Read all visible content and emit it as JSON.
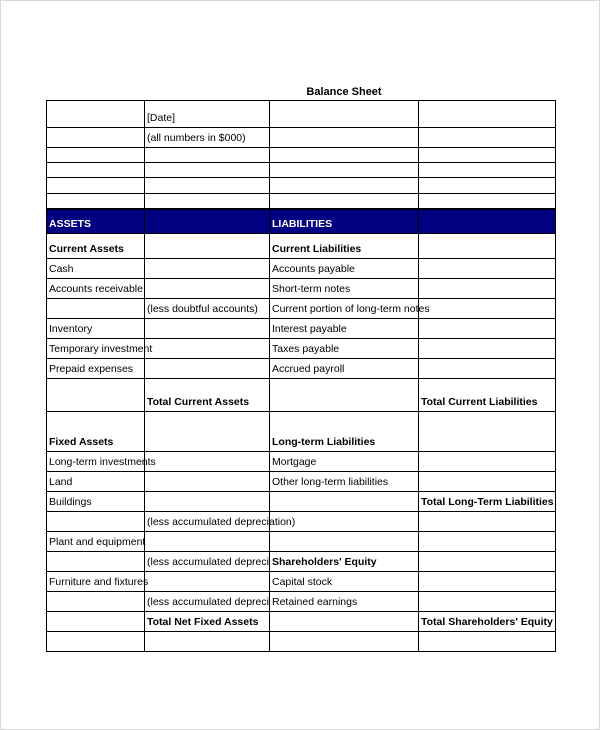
{
  "title": "Balance Sheet",
  "header_color": "#000080",
  "rows": [
    {
      "h": 27,
      "cells": [
        "",
        "[Date]",
        "",
        ""
      ]
    },
    {
      "h": 20,
      "cells": [
        "",
        "(all numbers in $000)",
        "",
        ""
      ]
    },
    {
      "h": 15,
      "cells": [
        "",
        "",
        "",
        ""
      ]
    },
    {
      "h": 15,
      "cells": [
        "",
        "",
        "",
        ""
      ]
    },
    {
      "h": 16,
      "cells": [
        "",
        "",
        "",
        ""
      ]
    },
    {
      "h": 15,
      "cells": [
        "",
        "",
        "",
        ""
      ]
    },
    {
      "h": 25,
      "header": true,
      "cells": [
        "ASSETS",
        "",
        "LIABILITIES",
        ""
      ]
    },
    {
      "h": 25,
      "bold": [
        0,
        2
      ],
      "cells": [
        "Current Assets",
        "",
        "Current Liabilities",
        ""
      ]
    },
    {
      "h": 20,
      "cells": [
        "Cash",
        "",
        "Accounts payable",
        ""
      ]
    },
    {
      "h": 20,
      "cells": [
        "Accounts receivable",
        "",
        "Short-term notes",
        ""
      ]
    },
    {
      "h": 20,
      "cells": [
        "",
        "(less doubtful accounts)",
        "Current portion of long-term notes",
        ""
      ]
    },
    {
      "h": 20,
      "cells": [
        "Inventory",
        "",
        "Interest payable",
        ""
      ]
    },
    {
      "h": 20,
      "cells": [
        "Temporary investment",
        "",
        "Taxes payable",
        ""
      ]
    },
    {
      "h": 20,
      "cells": [
        "Prepaid expenses",
        "",
        "Accrued payroll",
        ""
      ]
    },
    {
      "h": 33,
      "bold": [
        1,
        3
      ],
      "cells": [
        "",
        "Total Current Assets",
        "",
        "Total Current Liabilities"
      ]
    },
    {
      "h": 40,
      "bold": [
        0,
        2
      ],
      "cells": [
        "Fixed Assets",
        "",
        "Long-term Liabilities",
        ""
      ]
    },
    {
      "h": 20,
      "cells": [
        "Long-term investments",
        "",
        "Mortgage",
        ""
      ]
    },
    {
      "h": 20,
      "cells": [
        "Land",
        "",
        "Other long-term liabilities",
        ""
      ]
    },
    {
      "h": 20,
      "bold": [
        3
      ],
      "cells": [
        "Buildings",
        "",
        "",
        "Total Long-Term Liabilities"
      ]
    },
    {
      "h": 20,
      "cells": [
        "",
        "(less accumulated depreciation)",
        "",
        ""
      ]
    },
    {
      "h": 20,
      "cells": [
        "Plant and equipment",
        "",
        "",
        ""
      ]
    },
    {
      "h": 20,
      "bold": [
        2
      ],
      "cells": [
        "",
        "(less accumulated depreciation)",
        "Shareholders' Equity",
        ""
      ]
    },
    {
      "h": 20,
      "cells": [
        "Furniture and fixtures",
        "",
        "Capital stock",
        ""
      ]
    },
    {
      "h": 20,
      "cells": [
        "",
        "(less accumulated depreciation)",
        "Retained earnings",
        ""
      ]
    },
    {
      "h": 20,
      "bold": [
        1,
        3
      ],
      "cells": [
        "",
        "Total Net Fixed Assets",
        "",
        "Total Shareholders' Equity"
      ]
    },
    {
      "h": 20,
      "cells": [
        "",
        "",
        "",
        ""
      ]
    }
  ]
}
